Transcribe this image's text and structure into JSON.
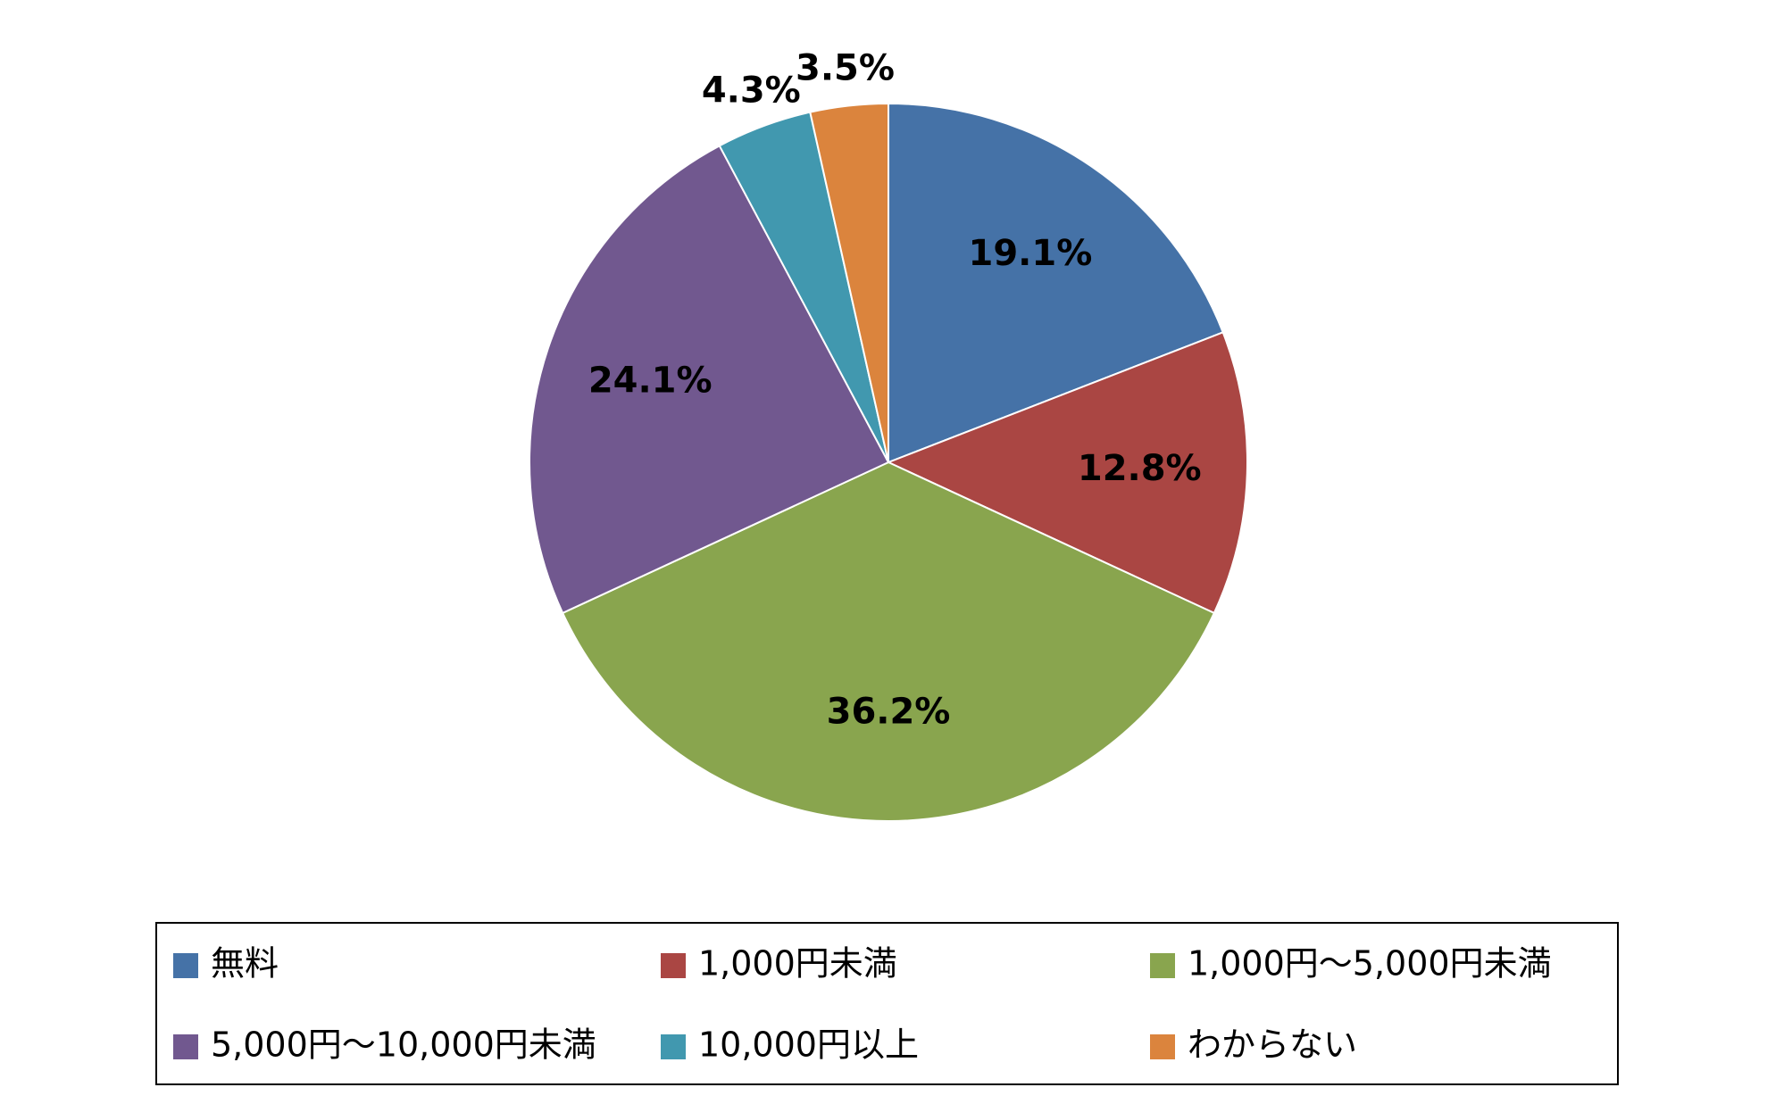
{
  "chart_data": {
    "type": "pie",
    "categories": [
      "無料",
      "1,000円未満",
      "1,000円～5,000円未満",
      "5,000円～10,000円未満",
      "10,000円以上",
      "わからない"
    ],
    "values": [
      19.1,
      12.8,
      36.2,
      24.1,
      4.3,
      3.5
    ],
    "value_labels": [
      "19.1%",
      "12.8%",
      "36.2%",
      "24.1%",
      "4.3%",
      "3.5%"
    ],
    "colors": [
      "#4572a7",
      "#aa4643",
      "#89a54e",
      "#71588f",
      "#4198af",
      "#db843d"
    ],
    "legend": "bottom"
  }
}
